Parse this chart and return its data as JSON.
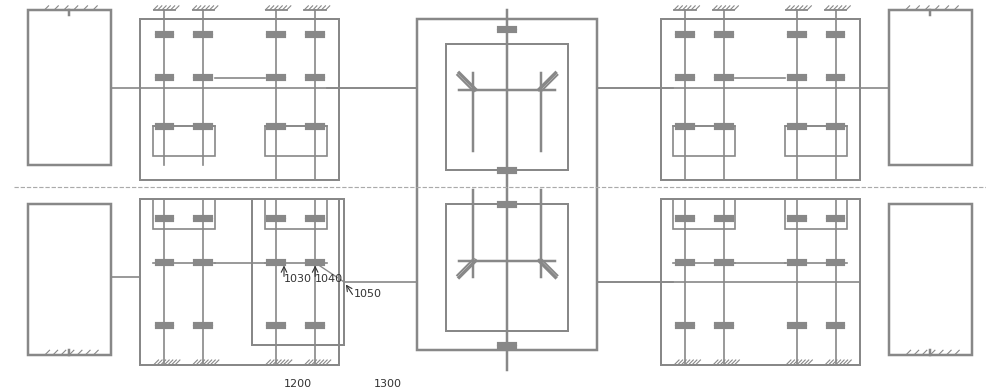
{
  "bg_color": "#ffffff",
  "line_color": "#888888",
  "line_width": 1.2,
  "fig_width": 10.0,
  "fig_height": 3.87,
  "dpi": 100
}
